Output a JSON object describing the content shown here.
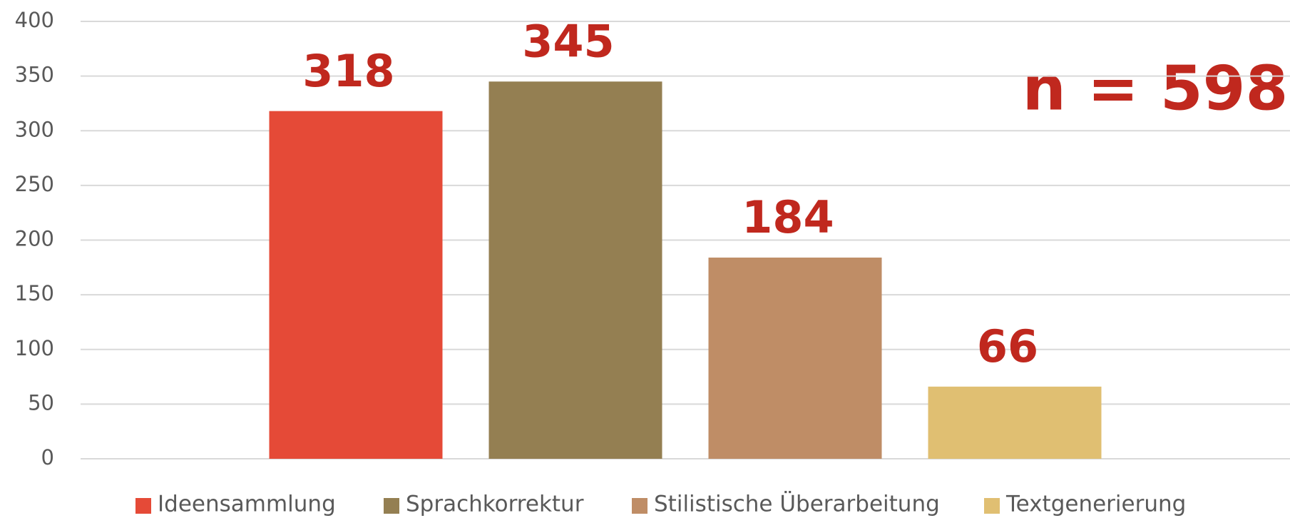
{
  "chart_data": {
    "type": "bar",
    "categories": [
      null
    ],
    "series": [
      {
        "name": "Ideensammlung",
        "color": "#e54a37",
        "values": [
          318
        ]
      },
      {
        "name": "Sprachkorrektur",
        "color": "#947f52",
        "values": [
          345
        ]
      },
      {
        "name": "Stilistische Überarbeitung",
        "color": "#bf8d66",
        "values": [
          184
        ]
      },
      {
        "name": "Textgenerierung",
        "color": "#e0bf72",
        "values": [
          66
        ]
      }
    ],
    "annotation": "n = 598",
    "ylim": [
      0,
      400
    ],
    "yticks": [
      0,
      50,
      100,
      150,
      200,
      250,
      300,
      350,
      400
    ],
    "grid": true,
    "legend": "bottom"
  }
}
